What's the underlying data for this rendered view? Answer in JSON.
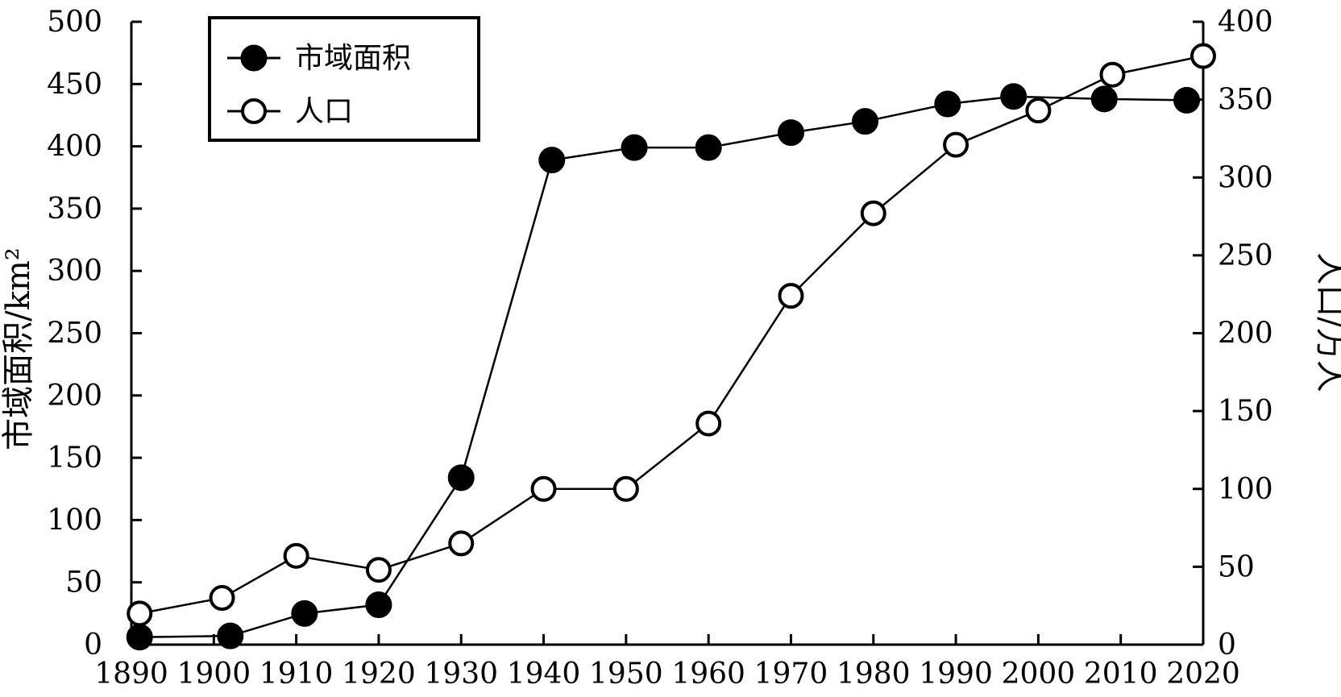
{
  "chart_data": {
    "type": "line",
    "x": [
      1891,
      1902,
      1911,
      1920,
      1930,
      1940,
      1950,
      1960,
      1970,
      1980,
      1990,
      2000,
      2010,
      2020
    ],
    "xlim": [
      1890,
      2020
    ],
    "x_ticks": [
      "1890",
      "1900",
      "1910",
      "1920",
      "1930",
      "1940",
      "1950",
      "1960",
      "1970",
      "1980",
      "1990",
      "2000",
      "2010",
      "2020"
    ],
    "ylabel_left": "市域面积/km²",
    "ylabel_right": "人口/万人",
    "ylim_left": [
      0,
      500
    ],
    "ylim_right": [
      0,
      400
    ],
    "y_ticks_left": [
      "0",
      "50",
      "100",
      "150",
      "200",
      "250",
      "300",
      "350",
      "400",
      "450",
      "500"
    ],
    "y_ticks_right": [
      "0",
      "50",
      "100",
      "150",
      "200",
      "250",
      "300",
      "350",
      "400"
    ],
    "legend_position": "top-left",
    "grid": false,
    "series": [
      {
        "name": "市域面积",
        "axis": "left",
        "marker": "filled-circle",
        "points": [
          [
            1891,
            6
          ],
          [
            1902,
            7
          ],
          [
            1911,
            25
          ],
          [
            1920,
            32
          ],
          [
            1930,
            134
          ],
          [
            1941,
            389
          ],
          [
            1951,
            399
          ],
          [
            1960,
            399
          ],
          [
            1970,
            411
          ],
          [
            1979,
            420
          ],
          [
            1989,
            434
          ],
          [
            1997,
            440
          ],
          [
            2008,
            438
          ],
          [
            2018,
            437
          ]
        ]
      },
      {
        "name": "人口",
        "axis": "right",
        "marker": "open-circle",
        "points": [
          [
            1891,
            20
          ],
          [
            1901,
            30
          ],
          [
            1910,
            57
          ],
          [
            1920,
            48
          ],
          [
            1930,
            65
          ],
          [
            1940,
            100
          ],
          [
            1950,
            100
          ],
          [
            1960,
            142
          ],
          [
            1970,
            224
          ],
          [
            1980,
            277
          ],
          [
            1990,
            321
          ],
          [
            2000,
            343
          ],
          [
            2009,
            366
          ],
          [
            2020,
            378
          ]
        ]
      }
    ]
  }
}
